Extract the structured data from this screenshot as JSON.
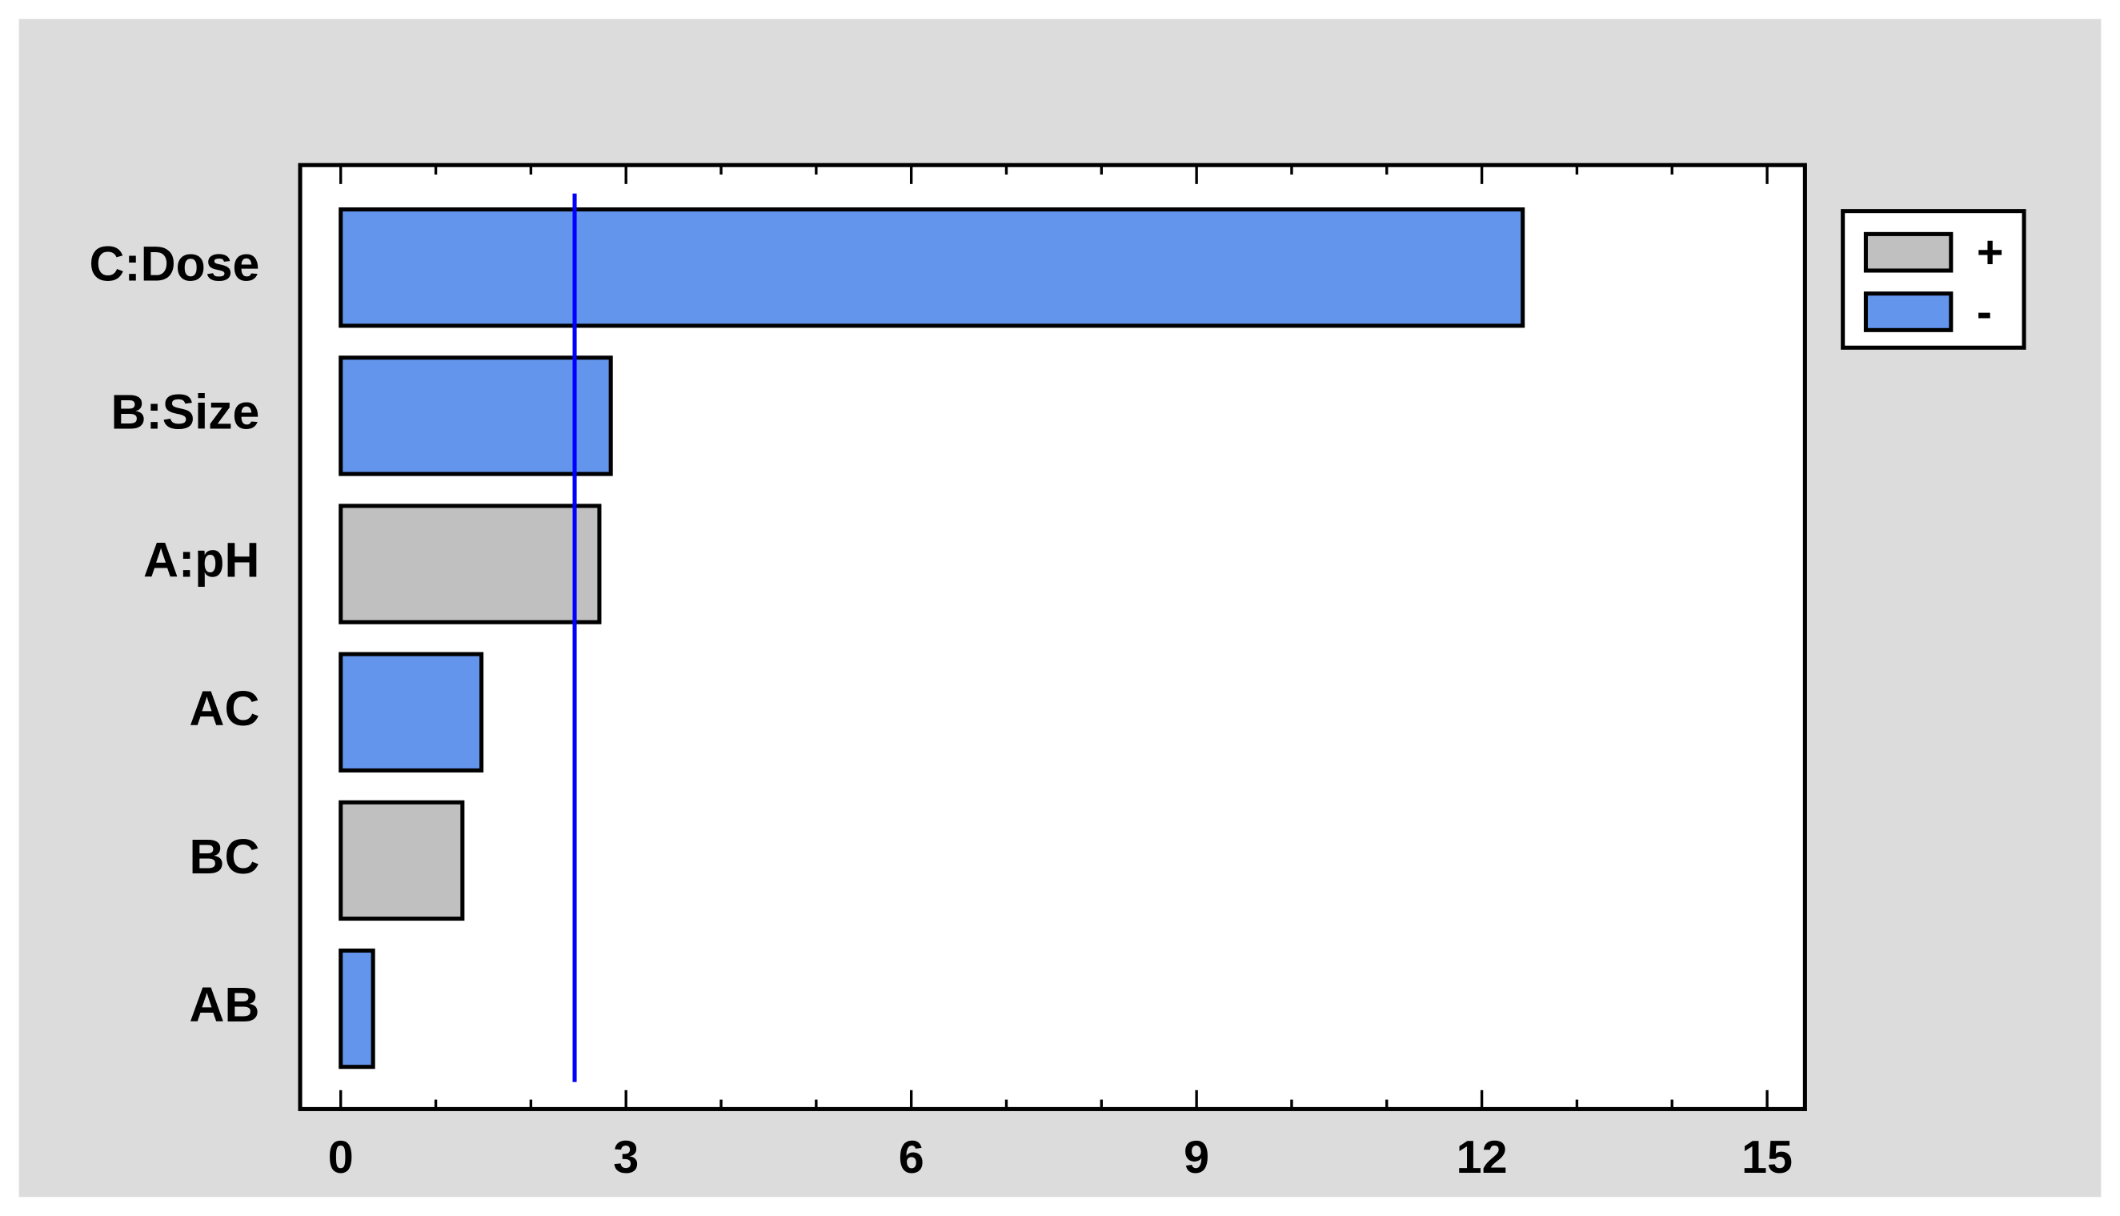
{
  "chart_data": {
    "type": "bar",
    "orientation": "horizontal",
    "categories": [
      "C:Dose",
      "B:Size",
      "A:pH",
      "AC",
      "BC",
      "AB"
    ],
    "series": [
      {
        "name": "+",
        "color": "#c0c0c0",
        "values": [
          null,
          null,
          2.72,
          null,
          1.28,
          null
        ]
      },
      {
        "name": "-",
        "color": "#6495ed",
        "values": [
          12.43,
          2.84,
          null,
          1.48,
          null,
          0.34
        ]
      }
    ],
    "reference_line": {
      "value": 2.46,
      "color": "#0000ff"
    },
    "xlim": [
      0,
      15
    ],
    "xticks": [
      0,
      3,
      6,
      9,
      12,
      15
    ],
    "legend": "right"
  }
}
